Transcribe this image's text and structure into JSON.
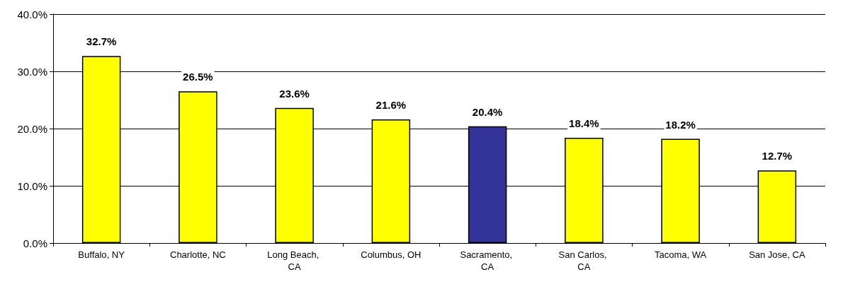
{
  "chart_data": {
    "type": "bar",
    "categories": [
      "Buffalo, NY",
      "Charlotte, NC",
      "Long Beach, CA",
      "Columbus, OH",
      "Sacramento, CA",
      "San Carlos, CA",
      "Tacoma, WA",
      "San Jose, CA"
    ],
    "values": [
      32.7,
      26.5,
      23.6,
      21.6,
      20.4,
      18.4,
      18.2,
      12.7
    ],
    "colors": [
      "#ffff00",
      "#ffff00",
      "#ffff00",
      "#ffff00",
      "#333399",
      "#ffff00",
      "#ffff00",
      "#ffff00"
    ],
    "value_labels": [
      "32.7%",
      "26.5%",
      "23.6%",
      "21.6%",
      "20.4%",
      "18.4%",
      "18.2%",
      "12.7%"
    ],
    "ylim": [
      0,
      40
    ],
    "yticks": [
      {
        "value": 0,
        "label": "0.0%"
      },
      {
        "value": 10,
        "label": "10.0%"
      },
      {
        "value": 20,
        "label": "20.0%"
      },
      {
        "value": 30,
        "label": "30.0%"
      },
      {
        "value": 40,
        "label": "40.0%"
      }
    ],
    "grid": "y"
  }
}
